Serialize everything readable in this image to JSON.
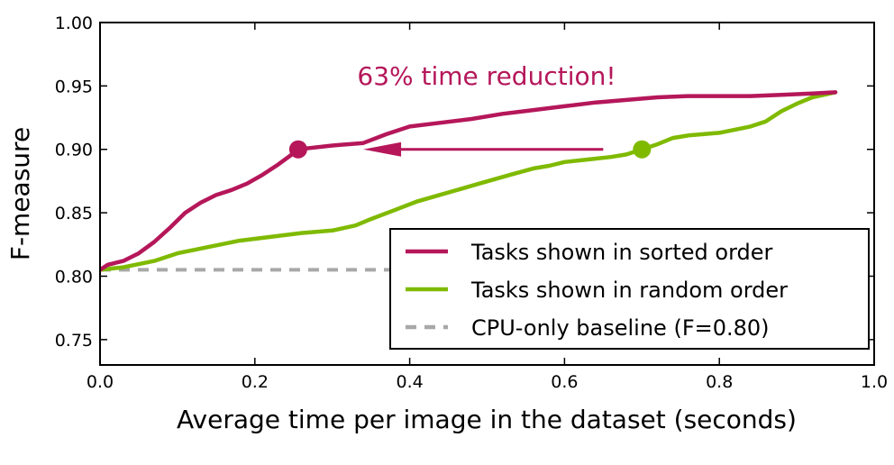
{
  "chart_data": {
    "type": "line",
    "xlabel": "Average time per image in the dataset (seconds)",
    "ylabel": "F-measure",
    "xlim": [
      0.0,
      1.0
    ],
    "ylim": [
      0.73,
      1.0
    ],
    "xticks": [
      "0.0",
      "0.2",
      "0.4",
      "0.6",
      "0.8",
      "1.0"
    ],
    "yticks": [
      "1.00",
      "0.95",
      "0.90",
      "0.85",
      "0.80",
      "0.75"
    ],
    "grid": false,
    "legend_position": "lower-right",
    "annotation": {
      "text": "63% time reduction!",
      "color": "#b5175a",
      "arrow_from": [
        0.65,
        0.9
      ],
      "arrow_to": [
        0.34,
        0.9
      ]
    },
    "series": [
      {
        "name": "Tasks shown in sorted order",
        "color": "#b5175a",
        "style": "solid",
        "marker": {
          "x": 0.256,
          "y": 0.9
        },
        "x": [
          0.0,
          0.01,
          0.03,
          0.05,
          0.07,
          0.09,
          0.11,
          0.13,
          0.15,
          0.17,
          0.19,
          0.21,
          0.23,
          0.25,
          0.256,
          0.3,
          0.34,
          0.37,
          0.4,
          0.44,
          0.48,
          0.52,
          0.56,
          0.6,
          0.64,
          0.68,
          0.72,
          0.76,
          0.8,
          0.84,
          0.88,
          0.92,
          0.95
        ],
        "y": [
          0.805,
          0.809,
          0.812,
          0.818,
          0.827,
          0.838,
          0.85,
          0.858,
          0.864,
          0.868,
          0.873,
          0.88,
          0.888,
          0.897,
          0.9,
          0.903,
          0.905,
          0.912,
          0.918,
          0.921,
          0.924,
          0.928,
          0.931,
          0.934,
          0.937,
          0.939,
          0.941,
          0.942,
          0.942,
          0.942,
          0.943,
          0.944,
          0.945
        ]
      },
      {
        "name": "Tasks shown in random order",
        "color": "#7fba00",
        "style": "solid",
        "marker": {
          "x": 0.7,
          "y": 0.9
        },
        "x": [
          0.0,
          0.03,
          0.07,
          0.1,
          0.14,
          0.18,
          0.22,
          0.26,
          0.3,
          0.33,
          0.35,
          0.38,
          0.41,
          0.45,
          0.49,
          0.53,
          0.56,
          0.58,
          0.6,
          0.63,
          0.66,
          0.68,
          0.7,
          0.72,
          0.74,
          0.76,
          0.8,
          0.84,
          0.86,
          0.88,
          0.9,
          0.92,
          0.95
        ],
        "y": [
          0.805,
          0.807,
          0.812,
          0.818,
          0.823,
          0.828,
          0.831,
          0.834,
          0.836,
          0.84,
          0.845,
          0.852,
          0.859,
          0.866,
          0.873,
          0.88,
          0.885,
          0.887,
          0.89,
          0.892,
          0.894,
          0.896,
          0.9,
          0.904,
          0.909,
          0.911,
          0.913,
          0.918,
          0.922,
          0.93,
          0.936,
          0.941,
          0.945
        ]
      },
      {
        "name": "CPU-only baseline (F=0.80)",
        "color": "#a8a8a8",
        "style": "dashed",
        "x": [
          0.0,
          0.95
        ],
        "y": [
          0.805,
          0.805
        ]
      }
    ]
  }
}
